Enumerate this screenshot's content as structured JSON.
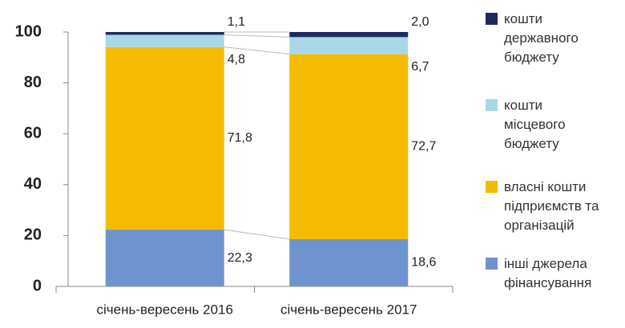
{
  "chart_data": {
    "type": "stacked_bar",
    "categories": [
      "січень-вересень 2016",
      "січень-вересень 2017"
    ],
    "series": [
      {
        "name": "інші джерела фінансування",
        "color": "#6f93cf",
        "values": [
          22.3,
          18.6
        ],
        "value_labels": [
          "22,3",
          "18,6"
        ]
      },
      {
        "name": "власні кошти підприємств та організацій",
        "color": "#f5bb00",
        "values": [
          71.8,
          72.7
        ],
        "value_labels": [
          "71,8",
          "72,7"
        ]
      },
      {
        "name": "кошти місцевого бюджету",
        "color": "#a8d8e8",
        "values": [
          4.8,
          6.7
        ],
        "value_labels": [
          "4,8",
          "6,7"
        ]
      },
      {
        "name": "кошти державного бюджету",
        "color": "#1f2a5c",
        "values": [
          1.1,
          2.0
        ],
        "value_labels": [
          "1,1",
          "2,0"
        ]
      }
    ],
    "ylim": [
      0,
      100
    ],
    "yticks": [
      0,
      20,
      40,
      60,
      80,
      100
    ],
    "grid": false
  }
}
